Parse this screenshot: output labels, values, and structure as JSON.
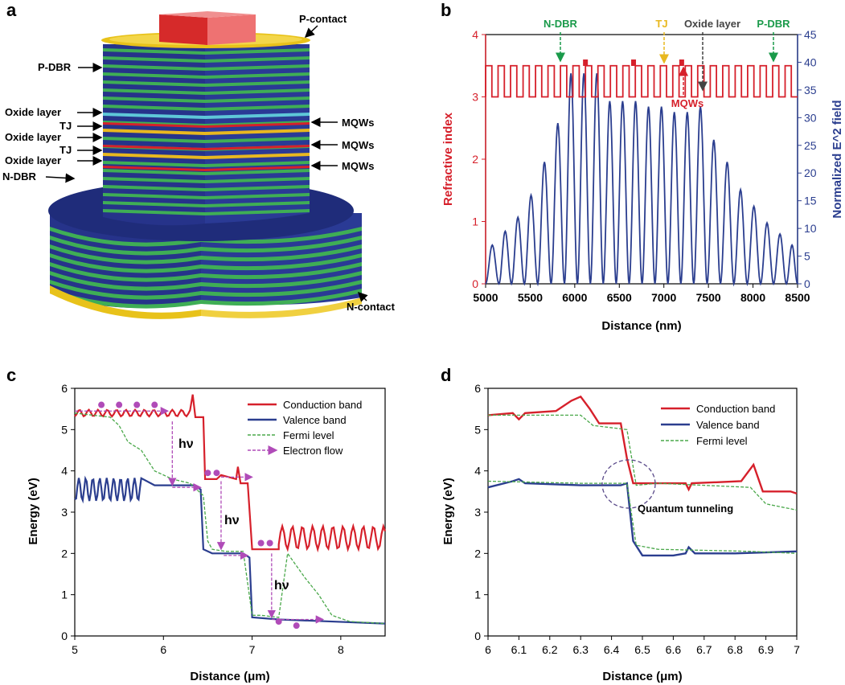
{
  "panel_labels": {
    "a": "a",
    "b": "b",
    "c": "c",
    "d": "d"
  },
  "colors": {
    "red": "#d6202b",
    "blue": "#2b3e8f",
    "green": "#1a9a4a",
    "fermi": "#4aa84a",
    "electron": "#b04bb8",
    "yellow": "#e8c21a",
    "dbr_blue": "#26338a",
    "dbr_green": "#3fae55",
    "oxide": "#5ec7d8",
    "tj_color": "#e8b820",
    "oxide_label": "#444444",
    "pdbr_label": "#1a9a4a"
  },
  "panel_a": {
    "p_contact": "P-contact",
    "p_dbr": "P-DBR",
    "oxide1": "Oxide layer",
    "tj1": "TJ",
    "oxide2": "Oxide layer",
    "tj2": "TJ",
    "oxide3": "Oxide layer",
    "n_dbr": "N-DBR",
    "mqw1": "MQWs",
    "mqw2": "MQWs",
    "mqw3": "MQWs",
    "n_contact": "N-contact"
  },
  "panel_b": {
    "annotations": {
      "ndbr": "N-DBR",
      "tj": "TJ",
      "oxide": "Oxide layer",
      "pdbr": "P-DBR",
      "mqws": "MQWs"
    },
    "chart_data": {
      "type": "line",
      "xlabel": "Distance (nm)",
      "ylabel_left": "Refractive index",
      "ylabel_right": "Normalized E^2 field",
      "xlim": [
        5000,
        8500
      ],
      "ylim_left": [
        0,
        4
      ],
      "ylim_right": [
        0,
        45
      ],
      "x_ticks": [
        "5000",
        "5500",
        "6000",
        "6500",
        "7000",
        "7500",
        "8000",
        "8500"
      ],
      "y_ticks_left": [
        "0",
        "1",
        "2",
        "3",
        "4"
      ],
      "y_ticks_right": [
        "0",
        "5",
        "10",
        "15",
        "20",
        "25",
        "30",
        "35",
        "40",
        "45"
      ],
      "series": [
        {
          "values_note": "",
          "refractive_index_levels": [
            3.0,
            3.5
          ],
          "x_periods": []
        }
      ],
      "e2_peak_x": [
        5080,
        5220,
        5360,
        5510,
        5660,
        5810,
        5960,
        6100,
        6250,
        6390,
        6540,
        6680,
        6830,
        6970,
        7120,
        7260,
        7410,
        7560,
        7710,
        7860,
        8010,
        8160,
        8300,
        8450
      ],
      "e2_peak_y": [
        7,
        9.5,
        12,
        16,
        22,
        29,
        38,
        38,
        38,
        33,
        33,
        33,
        32,
        32,
        31,
        31,
        32,
        26,
        22,
        17,
        14,
        11,
        9,
        7
      ]
    }
  },
  "panel_c": {
    "chart_data": {
      "type": "line",
      "xlabel": "Distance (μm)",
      "ylabel": "Energy (eV)",
      "xlim": [
        5,
        8.5
      ],
      "ylim": [
        0,
        6
      ],
      "x_ticks": [
        "5",
        "6",
        "7",
        "8"
      ],
      "y_ticks": [
        "0",
        "1",
        "2",
        "3",
        "4",
        "5",
        "6"
      ],
      "series": [
        {
          "name": "Conduction band"
        },
        {
          "name": "Valence band"
        },
        {
          "name": "Fermi level"
        },
        {
          "name": "Electron flow"
        }
      ]
    },
    "hv1": "hν",
    "hv2": "hν",
    "hv3": "hν"
  },
  "panel_d": {
    "chart_data": {
      "type": "line",
      "xlabel": "Distance (μm)",
      "ylabel": "Energy (eV)",
      "xlim": [
        6,
        7
      ],
      "ylim": [
        0,
        6
      ],
      "x_ticks": [
        "6",
        "6.1",
        "6.2",
        "6.3",
        "6.4",
        "6.5",
        "6.6",
        "6.7",
        "6.8",
        "6.9",
        "7"
      ],
      "y_ticks": [
        "0",
        "1",
        "2",
        "3",
        "4",
        "5",
        "6"
      ],
      "series": [
        {
          "name": "Conduction band"
        },
        {
          "name": "Valence band"
        },
        {
          "name": "Fermi level"
        }
      ]
    },
    "tunneling": "Quantum tunneling"
  }
}
